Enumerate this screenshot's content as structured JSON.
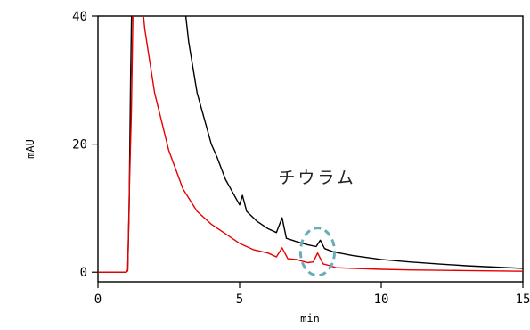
{
  "chart_data": {
    "type": "line",
    "xlabel": "min",
    "ylabel": "mAU",
    "xlim": [
      0,
      15
    ],
    "ylim": [
      -1.5,
      40
    ],
    "x_ticks": [
      "0",
      "5",
      "10",
      "15"
    ],
    "y_ticks": [
      "0",
      "20",
      "40"
    ],
    "x_tick_values": [
      0,
      5,
      10,
      15
    ],
    "y_tick_values": [
      0,
      20,
      40
    ],
    "grid": false,
    "annotation": {
      "text": "チウラム",
      "x": 7.8,
      "y": 3.0
    },
    "annotation_ellipse": {
      "cx": 7.75,
      "cy": 3.2,
      "rx": 0.6,
      "ry": 3.7,
      "color": "#6aadb8"
    },
    "series": [
      {
        "color": "#000000",
        "points": [
          [
            0,
            0
          ],
          [
            1.0,
            0
          ],
          [
            1.05,
            0.3
          ],
          [
            1.1,
            10
          ],
          [
            1.15,
            30
          ],
          [
            1.2,
            45
          ],
          [
            1.3,
            80
          ],
          [
            3.1,
            40
          ],
          [
            3.2,
            36
          ],
          [
            3.5,
            28
          ],
          [
            4.0,
            20
          ],
          [
            4.2,
            18
          ],
          [
            4.5,
            14.5
          ],
          [
            5.0,
            10.5
          ],
          [
            5.1,
            12.0
          ],
          [
            5.25,
            9.5
          ],
          [
            5.6,
            8.0
          ],
          [
            6.0,
            6.8
          ],
          [
            6.3,
            6.2
          ],
          [
            6.5,
            8.5
          ],
          [
            6.65,
            5.3
          ],
          [
            7.0,
            4.8
          ],
          [
            7.4,
            4.3
          ],
          [
            7.7,
            4.0
          ],
          [
            7.85,
            5.0
          ],
          [
            8.0,
            3.7
          ],
          [
            8.3,
            3.2
          ],
          [
            9.0,
            2.6
          ],
          [
            10.0,
            2.0
          ],
          [
            11.0,
            1.6
          ],
          [
            12.0,
            1.3
          ],
          [
            13.0,
            1.0
          ],
          [
            14.0,
            0.8
          ],
          [
            15.0,
            0.6
          ]
        ]
      },
      {
        "color": "#e60000",
        "points": [
          [
            0,
            0
          ],
          [
            1.0,
            0
          ],
          [
            1.05,
            0.2
          ],
          [
            1.12,
            15
          ],
          [
            1.18,
            25
          ],
          [
            1.25,
            45
          ],
          [
            1.3,
            80
          ],
          [
            1.5,
            45
          ],
          [
            1.65,
            38
          ],
          [
            2.0,
            28
          ],
          [
            2.5,
            19
          ],
          [
            3.0,
            13
          ],
          [
            3.5,
            9.5
          ],
          [
            4.0,
            7.5
          ],
          [
            4.5,
            6.0
          ],
          [
            5.0,
            4.5
          ],
          [
            5.5,
            3.5
          ],
          [
            6.0,
            3.0
          ],
          [
            6.3,
            2.4
          ],
          [
            6.5,
            3.8
          ],
          [
            6.7,
            2.1
          ],
          [
            7.0,
            2.0
          ],
          [
            7.4,
            1.5
          ],
          [
            7.6,
            1.6
          ],
          [
            7.75,
            3.0
          ],
          [
            7.95,
            1.3
          ],
          [
            8.2,
            1.0
          ],
          [
            8.4,
            0.7
          ],
          [
            9.0,
            0.6
          ],
          [
            10.0,
            0.45
          ],
          [
            11.0,
            0.35
          ],
          [
            12.0,
            0.3
          ],
          [
            13.0,
            0.25
          ],
          [
            14.0,
            0.2
          ],
          [
            15.0,
            0.15
          ]
        ]
      }
    ]
  }
}
